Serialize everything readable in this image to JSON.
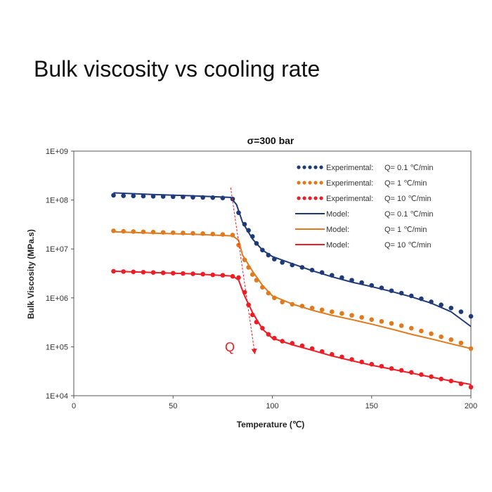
{
  "slide": {
    "title": "Bulk viscosity vs cooling rate"
  },
  "chart_data": {
    "type": "line",
    "title": "σ=300 bar",
    "xlabel": "Temperature (℃)",
    "ylabel": "Bulk Viscosity (MPa.s)",
    "xlim": [
      0,
      200
    ],
    "ylim": [
      10000,
      1000000000
    ],
    "yscale": "log",
    "x_ticks": [
      0,
      50,
      100,
      150,
      200
    ],
    "x_tick_labels": [
      "0",
      "50",
      "100",
      "150",
      "200"
    ],
    "y_ticks": [
      10000,
      100000,
      1000000,
      10000000,
      100000000,
      1000000000
    ],
    "y_tick_labels": [
      "1E+04",
      "1E+05",
      "1E+06",
      "1E+07",
      "1E+08",
      "1E+09"
    ],
    "series": [
      {
        "name": "Experimental:",
        "q": "Q= 0.1 ℃/min",
        "style": "dots",
        "color": "#1f3a78",
        "x": [
          20,
          25,
          30,
          35,
          40,
          45,
          50,
          55,
          60,
          65,
          70,
          75,
          80,
          83,
          86,
          88,
          90,
          92,
          95,
          98,
          101,
          105,
          110,
          115,
          120,
          125,
          130,
          135,
          140,
          145,
          150,
          155,
          160,
          165,
          170,
          175,
          180,
          185,
          190,
          195,
          200
        ],
        "y": [
          125000000,
          122000000,
          121000000,
          120000000,
          119000000,
          118000000,
          117000000,
          116000000,
          114000000,
          113000000,
          112000000,
          110000000,
          105000000,
          55000000,
          32000000,
          24000000,
          18000000,
          13000000,
          9500000,
          7500000,
          6200000,
          5300000,
          4700000,
          4200000,
          3700000,
          3300000,
          2900000,
          2600000,
          2300000,
          2050000,
          1800000,
          1600000,
          1400000,
          1250000,
          1100000,
          960000,
          830000,
          720000,
          620000,
          520000,
          420000
        ]
      },
      {
        "name": "Experimental:",
        "q": "Q=   1 ℃/min",
        "style": "dots",
        "color": "#e07a1f",
        "x": [
          20,
          25,
          30,
          35,
          40,
          45,
          50,
          55,
          60,
          65,
          70,
          75,
          80,
          83,
          86,
          88,
          90,
          92,
          95,
          98,
          101,
          105,
          110,
          115,
          120,
          125,
          130,
          135,
          140,
          145,
          150,
          155,
          160,
          165,
          170,
          175,
          180,
          185,
          190,
          195,
          200
        ],
        "y": [
          23500000,
          23000000,
          22700000,
          22400000,
          22100000,
          21800000,
          21500000,
          21200000,
          20900000,
          20600000,
          20200000,
          19800000,
          19200000,
          12000000,
          6000000,
          4200000,
          3000000,
          2300000,
          1650000,
          1250000,
          1000000,
          820000,
          740000,
          680000,
          620000,
          570000,
          520000,
          480000,
          440000,
          400000,
          360000,
          330000,
          300000,
          270000,
          240000,
          210000,
          185000,
          160000,
          140000,
          120000,
          92000
        ]
      },
      {
        "name": "Experimental:",
        "q": "Q=  10 ℃/min",
        "style": "dots",
        "color": "#ee1c25",
        "x": [
          20,
          25,
          30,
          35,
          40,
          45,
          50,
          55,
          60,
          65,
          70,
          75,
          80,
          83,
          86,
          88,
          90,
          92,
          95,
          98,
          101,
          105,
          110,
          115,
          120,
          125,
          130,
          135,
          140,
          145,
          150,
          155,
          160,
          165,
          170,
          175,
          180,
          185,
          190,
          195,
          200
        ],
        "y": [
          3500000,
          3450000,
          3400000,
          3350000,
          3300000,
          3250000,
          3200000,
          3150000,
          3100000,
          3050000,
          2950000,
          2900000,
          2750000,
          2600000,
          1300000,
          720000,
          450000,
          320000,
          240000,
          180000,
          150000,
          130000,
          118000,
          105000,
          92000,
          80000,
          70000,
          62000,
          55000,
          49000,
          44000,
          40000,
          36000,
          33000,
          30000,
          27000,
          24500,
          22000,
          20000,
          17500,
          15000
        ]
      },
      {
        "name": "Model:",
        "q": "Q= 0.1 ℃/min",
        "style": "line",
        "color": "#1f3a78",
        "x": [
          20,
          40,
          60,
          79,
          82,
          85,
          90,
          95,
          100,
          110,
          120,
          130,
          140,
          150,
          160,
          170,
          180,
          190,
          200
        ],
        "y": [
          140000000,
          130000000,
          122000000,
          113000000,
          80000000,
          35000000,
          16000000,
          9500000,
          7000000,
          5000000,
          3600000,
          2700000,
          2100000,
          1700000,
          1350000,
          1050000,
          780000,
          520000,
          260000
        ]
      },
      {
        "name": "Model:",
        "q": "Q=   1 ℃/min",
        "style": "line",
        "color": "#e07a1f",
        "x": [
          20,
          40,
          60,
          80,
          83,
          85,
          90,
          95,
          100,
          110,
          120,
          130,
          140,
          150,
          160,
          170,
          180,
          190,
          200
        ],
        "y": [
          22500000,
          21000000,
          20000000,
          18500000,
          15000000,
          7500000,
          3500000,
          1800000,
          1100000,
          750000,
          560000,
          440000,
          360000,
          290000,
          230000,
          180000,
          145000,
          115000,
          92000
        ]
      },
      {
        "name": "Model:",
        "q": "Q=  10 ℃/min",
        "style": "line",
        "color": "#ee1c25",
        "x": [
          20,
          40,
          60,
          80,
          83,
          86,
          90,
          95,
          100,
          110,
          120,
          130,
          140,
          150,
          160,
          170,
          180,
          190,
          200
        ],
        "y": [
          3500000,
          3300000,
          3100000,
          2800000,
          2300000,
          1100000,
          500000,
          230000,
          150000,
          110000,
          85000,
          65000,
          52000,
          42000,
          35000,
          29000,
          24000,
          20000,
          17000
        ]
      }
    ],
    "annotation": {
      "label": "Q",
      "color": "#ee1c25",
      "x_start": 79,
      "y_start": 180000000,
      "x_end": 91,
      "y_end": 80000
    }
  }
}
